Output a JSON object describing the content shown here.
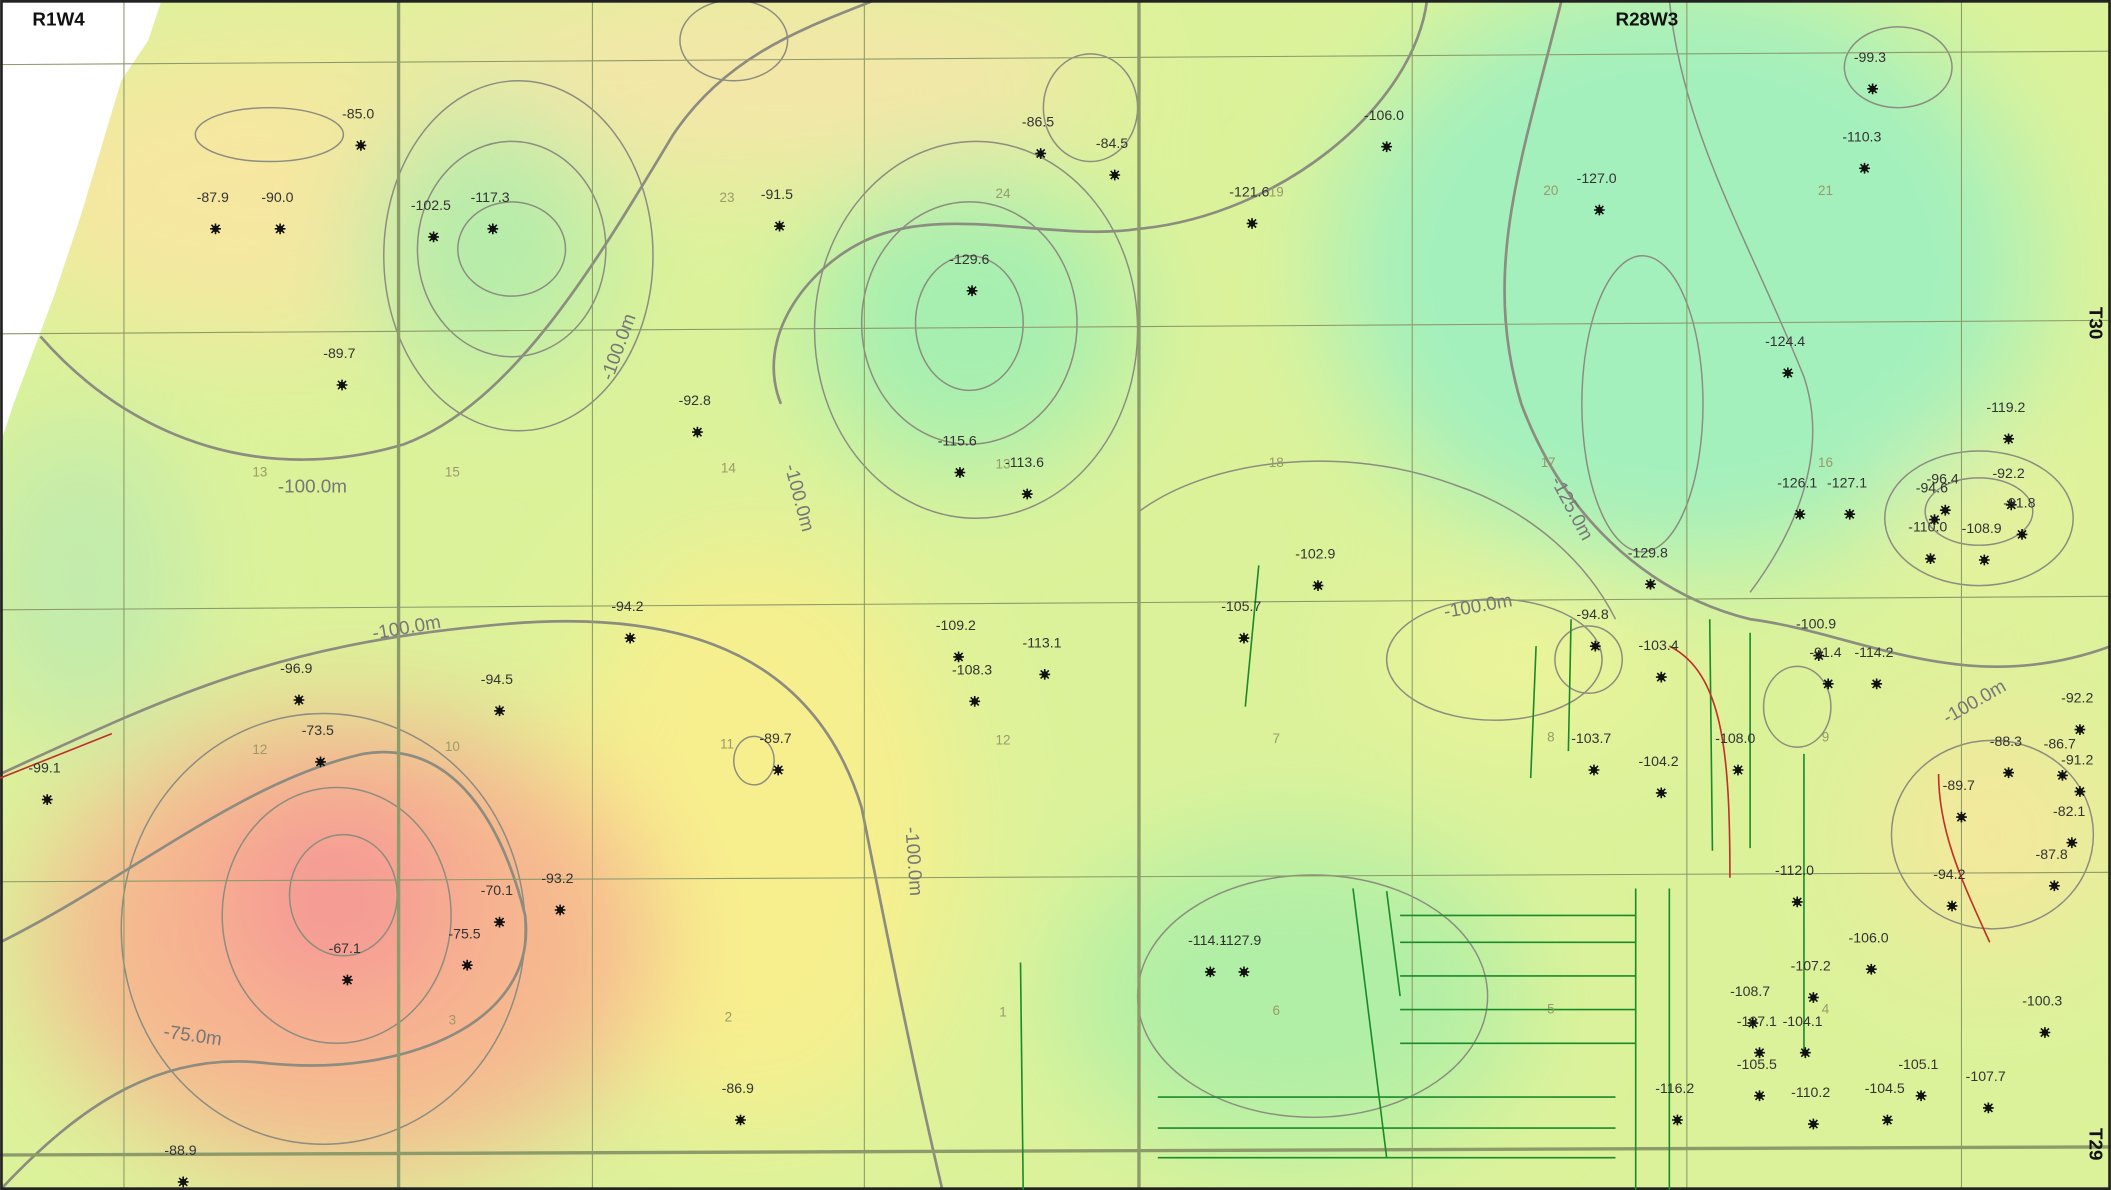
{
  "range_labels": [
    "R1W4",
    "R28W3"
  ],
  "township_labels": [
    "T30",
    "T29"
  ],
  "contour_labels": [
    "-100.0m",
    "-100.0m",
    "-100.0m",
    "-100.0m",
    "-100.0m",
    "-100.0m",
    "-100.0m",
    "-75.0m",
    "-125.0m"
  ],
  "section_numbers": [
    "23",
    "24",
    "19",
    "20",
    "21",
    "13",
    "15",
    "14",
    "13",
    "18",
    "17",
    "16",
    "12",
    "10",
    "11",
    "12",
    "7",
    "8",
    "9",
    "3",
    "2",
    "1",
    "6",
    "5",
    "4"
  ],
  "well_values": [
    "-85.0",
    "-87.9",
    "-90.0",
    "-102.5",
    "-117.3",
    "-89.7",
    "-91.5",
    "-86.5",
    "-84.5",
    "-106.0",
    "-121.6",
    "-129.6",
    "-92.8",
    "-115.6",
    "-113.6",
    "-127.0",
    "-99.3",
    "-110.3",
    "-124.4",
    "-119.2",
    "-126.1",
    "-127.1",
    "-96.4",
    "-92.2",
    "-94.6",
    "-91.8",
    "-110.0",
    "-108.9",
    "-129.8",
    "-102.9",
    "-105.7",
    "-94.2",
    "-109.2",
    "-113.1",
    "-108.3",
    "-94.8",
    "-103.4",
    "-100.9",
    "-91.4",
    "-114.2",
    "-96.9",
    "-94.5",
    "-73.5",
    "-99.1",
    "-89.7",
    "-103.7",
    "-104.2",
    "-108.0",
    "-92.2",
    "-88.3",
    "-86.7",
    "-91.2",
    "-89.7",
    "-82.1",
    "-87.8",
    "-94.2",
    "-112.0",
    "-93.2",
    "-70.1",
    "-75.5",
    "-67.1",
    "-114.1",
    "-127.9",
    "-106.0",
    "-107.2",
    "-108.7",
    "-100.3",
    "-107.1",
    "-104.1",
    "-105.5",
    "-105.1",
    "-107.7",
    "-110.2",
    "-104.5",
    "-116.2",
    "-86.9",
    "-88.9"
  ]
}
